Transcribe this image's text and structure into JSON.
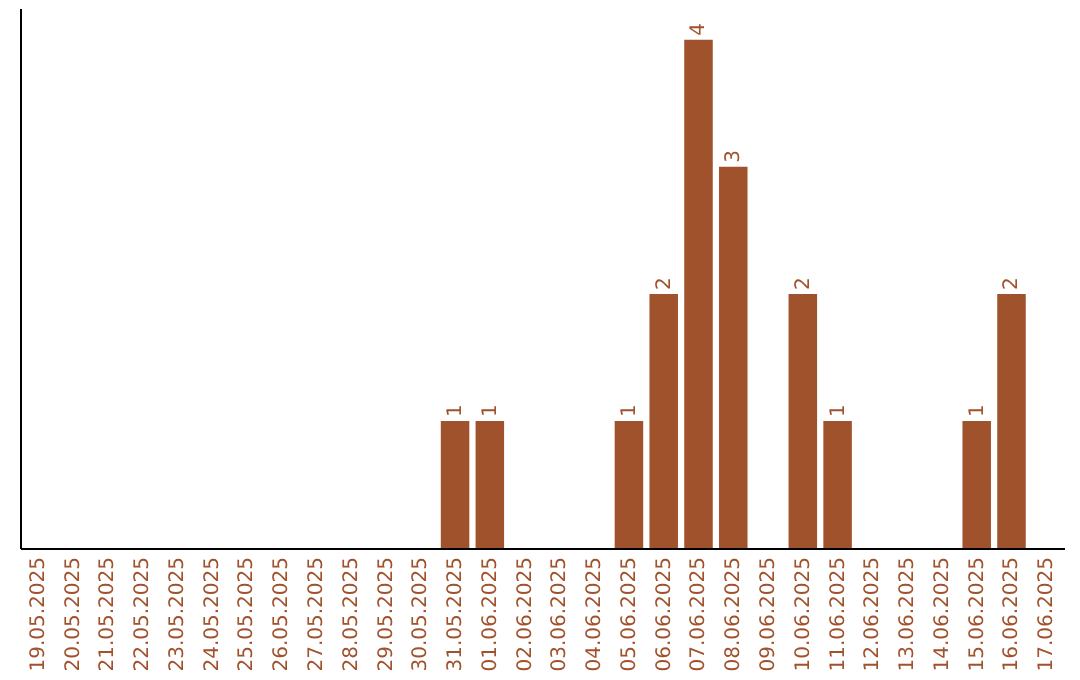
{
  "chart_data": {
    "type": "bar",
    "categories": [
      "19.05.2025",
      "20.05.2025",
      "21.05.2025",
      "22.05.2025",
      "23.05.2025",
      "24.05.2025",
      "25.05.2025",
      "26.05.2025",
      "27.05.2025",
      "28.05.2025",
      "29.05.2025",
      "30.05.2025",
      "31.05.2025",
      "01.06.2025",
      "02.06.2025",
      "03.06.2025",
      "04.06.2025",
      "05.06.2025",
      "06.06.2025",
      "07.06.2025",
      "08.06.2025",
      "09.06.2025",
      "10.06.2025",
      "11.06.2025",
      "12.06.2025",
      "13.06.2025",
      "14.06.2025",
      "15.06.2025",
      "16.06.2025",
      "17.06.2025"
    ],
    "values": [
      null,
      null,
      null,
      null,
      null,
      null,
      null,
      null,
      null,
      null,
      null,
      null,
      1,
      1,
      null,
      null,
      null,
      1,
      2,
      4,
      3,
      null,
      2,
      1,
      null,
      null,
      null,
      1,
      2,
      null
    ],
    "data_labels": true,
    "color": "#a0522d",
    "ylim": [
      0,
      4.25
    ],
    "tick_labels": "x",
    "grid": false
  }
}
